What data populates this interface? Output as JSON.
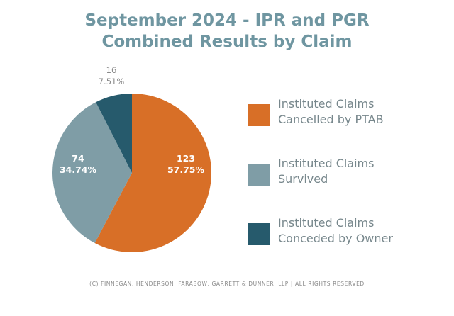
{
  "title": {
    "line1": "September 2024 - IPR and PGR",
    "line2": "Combined Results by Claim"
  },
  "footer": "(C) FINNEGAN, HENDERSON, FARABOW, GARRETT & DUNNER, LLP | ALL RIGHTS RESERVED",
  "chart_data": {
    "type": "pie",
    "title": "September 2024 - IPR and PGR Combined Results by Claim",
    "legend_position": "right",
    "slices": [
      {
        "name_lines": [
          "Instituted Claims",
          "Cancelled by PTAB"
        ],
        "value": 123,
        "percent_label": "57.75%",
        "color": "#d86f27",
        "label_color": "#ffffff"
      },
      {
        "name_lines": [
          "Instituted Claims",
          "Survived"
        ],
        "value": 74,
        "percent_label": "34.74%",
        "color": "#7f9da6",
        "label_color": "#ffffff"
      },
      {
        "name_lines": [
          "Instituted Claims",
          "Conceded by Owner"
        ],
        "value": 16,
        "percent_label": "7.51%",
        "color": "#265a6c",
        "label_color": "#8a8a8a"
      }
    ]
  }
}
